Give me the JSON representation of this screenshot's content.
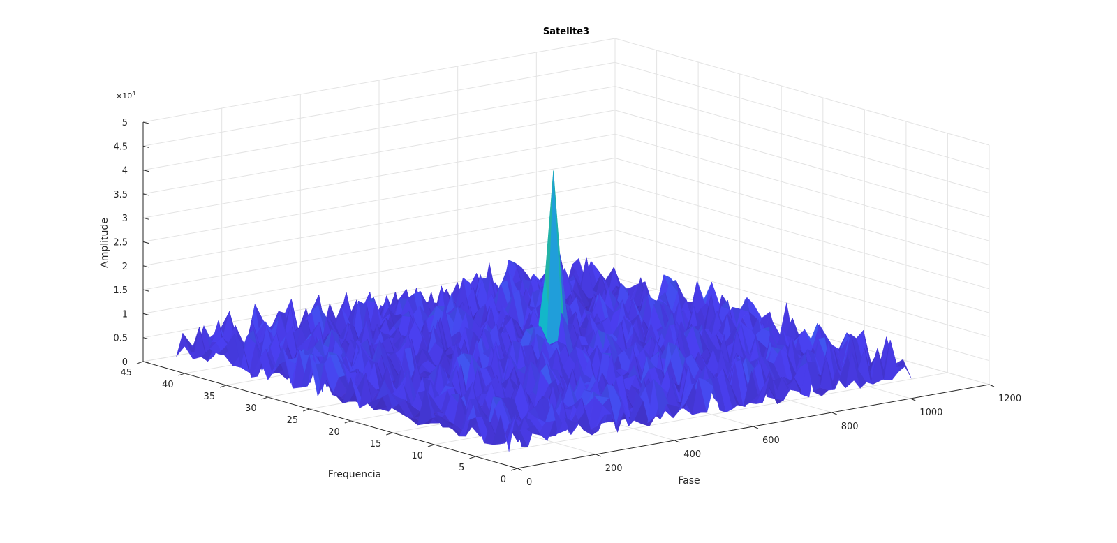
{
  "chart_data": {
    "type": "surface",
    "title": "Satelite3",
    "xlabel": "Fase",
    "ylabel": "Frequencia",
    "zlabel": "Amplitude",
    "z_exponent_label": "×10",
    "z_exponent_power": "4",
    "xlim": [
      0,
      1200
    ],
    "ylim": [
      0,
      45
    ],
    "zlim": [
      0,
      50000
    ],
    "xticks": [
      "0",
      "200",
      "400",
      "600",
      "800",
      "1000",
      "1200"
    ],
    "yticks": [
      "0",
      "5",
      "10",
      "15",
      "20",
      "25",
      "30",
      "35",
      "40",
      "45"
    ],
    "zticks": [
      "0",
      "0.5",
      "1",
      "1.5",
      "2",
      "2.5",
      "3",
      "3.5",
      "4",
      "4.5",
      "5"
    ],
    "grid": "on",
    "colormap": "parula",
    "colors": [
      "#3e26a8",
      "#4a3ff0",
      "#2f80f0",
      "#13b8c8",
      "#35c8a0",
      "#a6c63c",
      "#f4b930",
      "#f9fb0e"
    ],
    "data_extent": {
      "x": [
        0,
        1023
      ],
      "y": [
        1,
        41
      ]
    },
    "noise_floor": [
      3000,
      12000
    ],
    "peak": {
      "x": 540,
      "y": 21,
      "z": 48000
    }
  }
}
